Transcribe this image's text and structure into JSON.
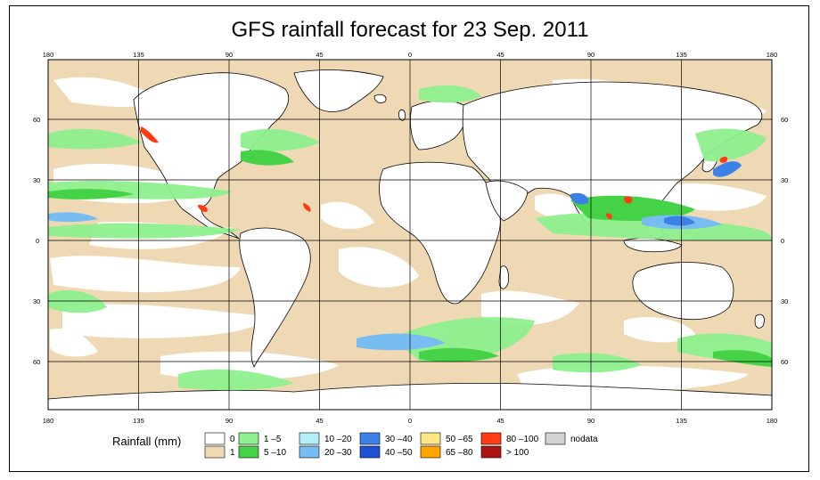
{
  "title": "GFS rainfall forecast for 23 Sep. 2011",
  "map": {
    "lon_ticks": [
      "180",
      "135",
      "90",
      "45",
      "0",
      "45",
      "90",
      "135",
      "180"
    ],
    "lat_ticks_left": [
      "60",
      "30",
      "0",
      "30",
      "60"
    ],
    "lat_ticks_right": [
      "60",
      "30",
      "0",
      "30",
      "60"
    ]
  },
  "legend": {
    "title": "Rainfall (mm)",
    "items": [
      {
        "label": "0",
        "color": "#ffffff"
      },
      {
        "label": "1",
        "color": "#efd9b4"
      },
      {
        "label": "1 –5",
        "color": "#8ef08e"
      },
      {
        "label": "5 –10",
        "color": "#46d246"
      },
      {
        "label": "10 –20",
        "color": "#b4eef8"
      },
      {
        "label": "20 –30",
        "color": "#78bdf2"
      },
      {
        "label": "30 –40",
        "color": "#3c82e6"
      },
      {
        "label": "40 –50",
        "color": "#1e50d2"
      },
      {
        "label": "50 –65",
        "color": "#ffe682"
      },
      {
        "label": "65 –80",
        "color": "#ffa500"
      },
      {
        "label": "80 –100",
        "color": "#ff3c14"
      },
      {
        "label": "> 100",
        "color": "#aa1414"
      },
      {
        "label": "nodata",
        "color": "#d2d2d2"
      }
    ]
  },
  "colors": {
    "ocean_light": "#efd9b4",
    "land": "#ffffff",
    "rain_light": "#8ef08e",
    "rain_medium": "#46d246",
    "rain_heavy_blue": "#3c82e6",
    "rain_extreme": "#ff3c14"
  }
}
